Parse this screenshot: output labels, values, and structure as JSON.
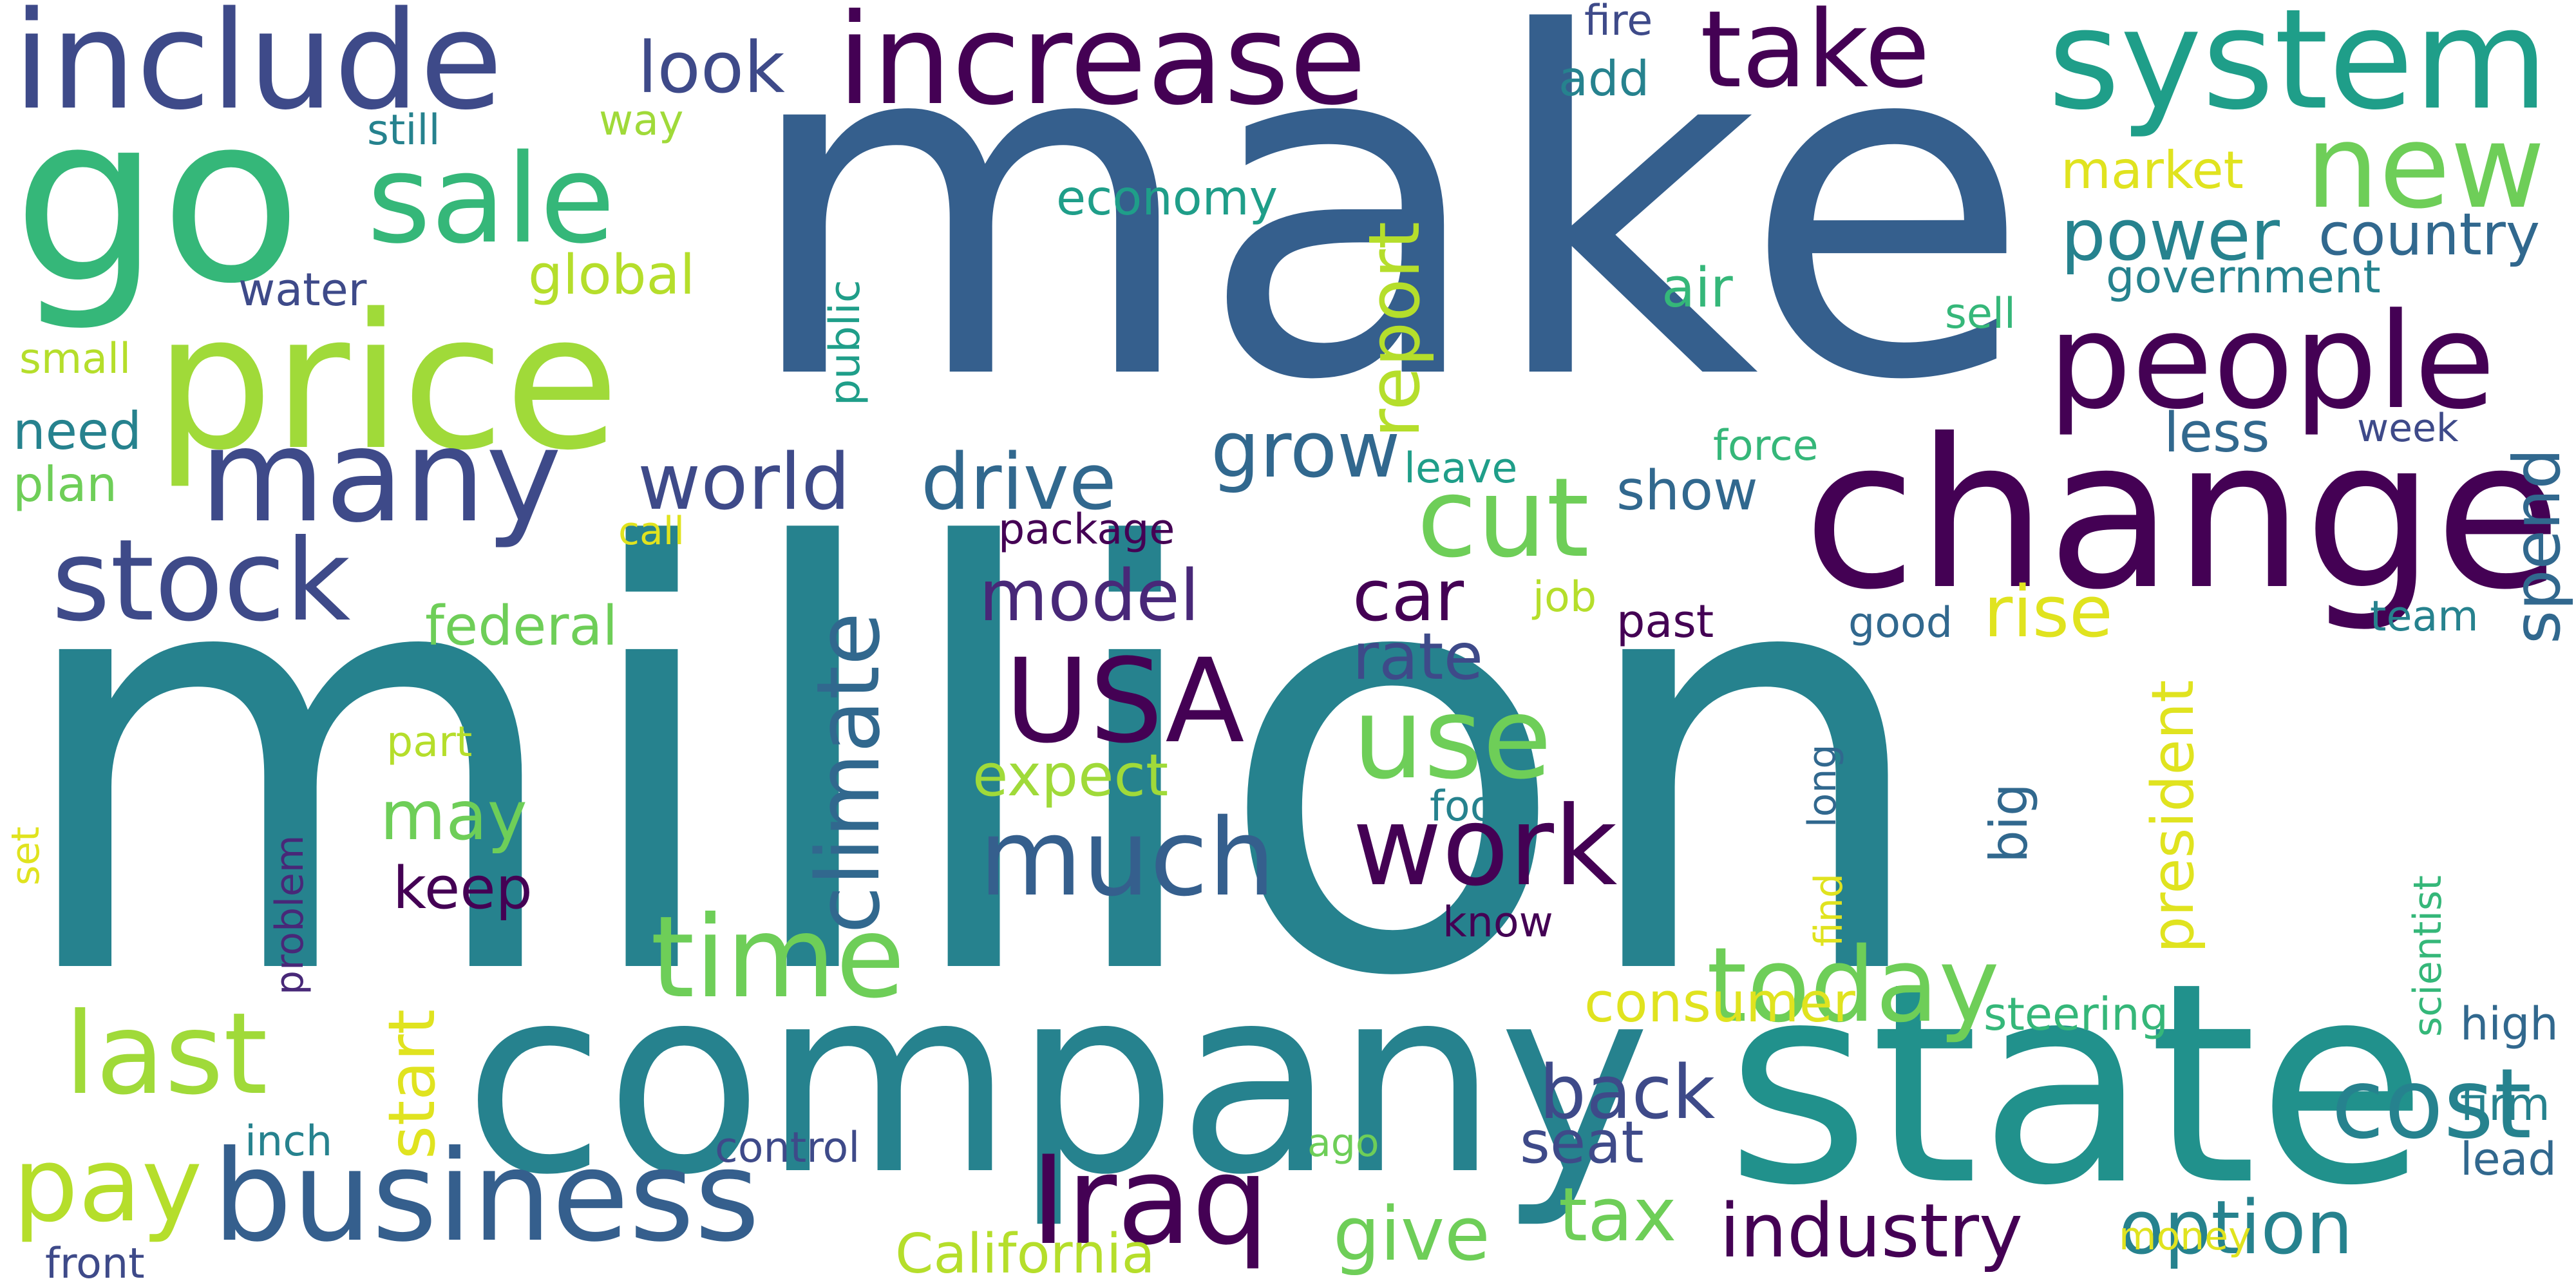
{
  "palette": {
    "background": "#ffffff",
    "dark_purple": "#440154",
    "indigo": "#3e4a89",
    "blue": "#355f8d",
    "teal": "#26828e",
    "sea_green": "#1f9e89",
    "green": "#35b779",
    "light_green": "#6ece58",
    "lime": "#b5de2b",
    "yellow": "#e0e31f"
  },
  "words": [
    {
      "text": "million",
      "color": "#26828e"
    },
    {
      "text": "make",
      "color": "#355f8d"
    },
    {
      "text": "company",
      "color": "#26828e"
    },
    {
      "text": "state",
      "color": "#21918c"
    },
    {
      "text": "change",
      "color": "#440154"
    },
    {
      "text": "price",
      "color": "#a0da39"
    },
    {
      "text": "go",
      "color": "#35b779"
    },
    {
      "text": "include",
      "color": "#3e4a89"
    },
    {
      "text": "increase",
      "color": "#440154"
    },
    {
      "text": "system",
      "color": "#1f9e89"
    },
    {
      "text": "people",
      "color": "#440154"
    },
    {
      "text": "new",
      "color": "#6ece58"
    },
    {
      "text": "take",
      "color": "#440154"
    },
    {
      "text": "sale",
      "color": "#35b779"
    },
    {
      "text": "many",
      "color": "#3e4a89"
    },
    {
      "text": "stock",
      "color": "#3e4a89"
    },
    {
      "text": "business",
      "color": "#355f8d"
    },
    {
      "text": "Iraq",
      "color": "#440154"
    },
    {
      "text": "USA",
      "color": "#440154"
    },
    {
      "text": "much",
      "color": "#355f8d"
    },
    {
      "text": "work",
      "color": "#440154"
    },
    {
      "text": "use",
      "color": "#6ece58"
    },
    {
      "text": "cut",
      "color": "#6ece58"
    },
    {
      "text": "last",
      "color": "#a0da39"
    },
    {
      "text": "pay",
      "color": "#b5de2b"
    },
    {
      "text": "time",
      "color": "#6ece58"
    },
    {
      "text": "today",
      "color": "#6ece58"
    },
    {
      "text": "cost",
      "color": "#26828e"
    },
    {
      "text": "climate",
      "color": "#31688e"
    },
    {
      "text": "report",
      "color": "#b5de2b"
    },
    {
      "text": "world",
      "color": "#3e4a89"
    },
    {
      "text": "drive",
      "color": "#31688e"
    },
    {
      "text": "grow",
      "color": "#31688e"
    },
    {
      "text": "power",
      "color": "#26828e"
    },
    {
      "text": "country",
      "color": "#31688e"
    },
    {
      "text": "look",
      "color": "#3e4a89"
    },
    {
      "text": "model",
      "color": "#482878"
    },
    {
      "text": "car",
      "color": "#440154"
    },
    {
      "text": "rate",
      "color": "#3e4a89"
    },
    {
      "text": "may",
      "color": "#6ece58"
    },
    {
      "text": "keep",
      "color": "#440154"
    },
    {
      "text": "back",
      "color": "#3e4a89"
    },
    {
      "text": "seat",
      "color": "#3e4a89"
    },
    {
      "text": "give",
      "color": "#6ece58"
    },
    {
      "text": "tax",
      "color": "#6ece58"
    },
    {
      "text": "industry",
      "color": "#440154"
    },
    {
      "text": "option",
      "color": "#26828e"
    },
    {
      "text": "rise",
      "color": "#e0e31f"
    },
    {
      "text": "spend",
      "color": "#31688e"
    },
    {
      "text": "start",
      "color": "#e0e31f"
    },
    {
      "text": "consumer",
      "color": "#e0e31f"
    },
    {
      "text": "expect",
      "color": "#a0da39"
    },
    {
      "text": "federal",
      "color": "#6ece58"
    },
    {
      "text": "president",
      "color": "#e0e31f"
    },
    {
      "text": "show",
      "color": "#31688e"
    },
    {
      "text": "less",
      "color": "#31688e"
    },
    {
      "text": "market",
      "color": "#e0e31f"
    },
    {
      "text": "global",
      "color": "#b5de2b"
    },
    {
      "text": "add",
      "color": "#26828e"
    },
    {
      "text": "air",
      "color": "#35b779"
    },
    {
      "text": "government",
      "color": "#26828e"
    },
    {
      "text": "economy",
      "color": "#1f9e89"
    },
    {
      "text": "California",
      "color": "#b5de2b"
    },
    {
      "text": "need",
      "color": "#26828e"
    },
    {
      "text": "plan",
      "color": "#6ece58"
    },
    {
      "text": "water",
      "color": "#3e4a89"
    },
    {
      "text": "small",
      "color": "#b5de2b"
    },
    {
      "text": "still",
      "color": "#26828e"
    },
    {
      "text": "way",
      "color": "#a0da39"
    },
    {
      "text": "fire",
      "color": "#3e4a89"
    },
    {
      "text": "public",
      "color": "#1f9e89"
    },
    {
      "text": "sell",
      "color": "#35b779"
    },
    {
      "text": "force",
      "color": "#35b779"
    },
    {
      "text": "week",
      "color": "#3e4a89"
    },
    {
      "text": "leave",
      "color": "#1f9e89"
    },
    {
      "text": "package",
      "color": "#440154"
    },
    {
      "text": "call",
      "color": "#e0e31f"
    },
    {
      "text": "job",
      "color": "#b5de2b"
    },
    {
      "text": "past",
      "color": "#440154"
    },
    {
      "text": "good",
      "color": "#31688e"
    },
    {
      "text": "team",
      "color": "#26828e"
    },
    {
      "text": "part",
      "color": "#b5de2b"
    },
    {
      "text": "foot",
      "color": "#26828e"
    },
    {
      "text": "long",
      "color": "#31688e"
    },
    {
      "text": "big",
      "color": "#31688e"
    },
    {
      "text": "find",
      "color": "#e0e31f"
    },
    {
      "text": "know",
      "color": "#440154"
    },
    {
      "text": "problem",
      "color": "#482878"
    },
    {
      "text": "set",
      "color": "#e0e31f"
    },
    {
      "text": "scientist",
      "color": "#35b779"
    },
    {
      "text": "steering",
      "color": "#35b779"
    },
    {
      "text": "high",
      "color": "#31688e"
    },
    {
      "text": "firm",
      "color": "#26828e"
    },
    {
      "text": "lead",
      "color": "#31688e"
    },
    {
      "text": "inch",
      "color": "#26828e"
    },
    {
      "text": "control",
      "color": "#3e4a89"
    },
    {
      "text": "ago",
      "color": "#6ece58"
    },
    {
      "text": "money",
      "color": "#e0e31f"
    },
    {
      "text": "front",
      "color": "#3e4a89"
    }
  ]
}
